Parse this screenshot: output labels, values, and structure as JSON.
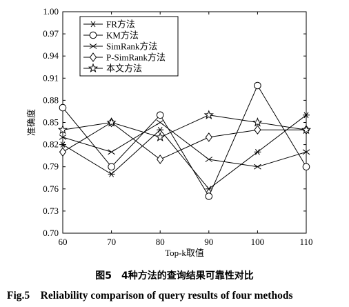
{
  "chart_data": {
    "type": "line",
    "x": [
      60,
      70,
      80,
      90,
      100,
      110
    ],
    "xlabel": "Top-k取值",
    "ylabel": "准确度",
    "ylim": [
      0.7,
      1.0
    ],
    "yticks": [
      "0.70",
      "0.73",
      "0.76",
      "0.79",
      "0.82",
      "0.85",
      "0.88",
      "0.91",
      "0.94",
      "0.97",
      "1.00"
    ],
    "xticks": [
      "60",
      "70",
      "80",
      "90",
      "100",
      "110"
    ],
    "grid": false,
    "legend_position": "top-left",
    "series": [
      {
        "name": "FR方法",
        "marker": "asterisk",
        "values": [
          0.82,
          0.78,
          0.84,
          0.76,
          0.81,
          0.86
        ]
      },
      {
        "name": "KM方法",
        "marker": "circle",
        "values": [
          0.87,
          0.79,
          0.86,
          0.75,
          0.9,
          0.79
        ]
      },
      {
        "name": "SimRank方法",
        "marker": "cross",
        "values": [
          0.83,
          0.81,
          0.85,
          0.8,
          0.79,
          0.81
        ]
      },
      {
        "name": "P-SimRank方法",
        "marker": "diamond",
        "values": [
          0.81,
          0.85,
          0.8,
          0.83,
          0.84,
          0.84
        ]
      },
      {
        "name": "本文方法",
        "marker": "star",
        "values": [
          0.84,
          0.85,
          0.83,
          0.86,
          0.85,
          0.84
        ]
      }
    ]
  },
  "caption": {
    "chinese": "图5　4种方法的查询结果可靠性对比",
    "english": "Fig.5　Reliability comparison of query results of four methods"
  },
  "colors": {
    "line": "#000000",
    "background": "#ffffff"
  }
}
